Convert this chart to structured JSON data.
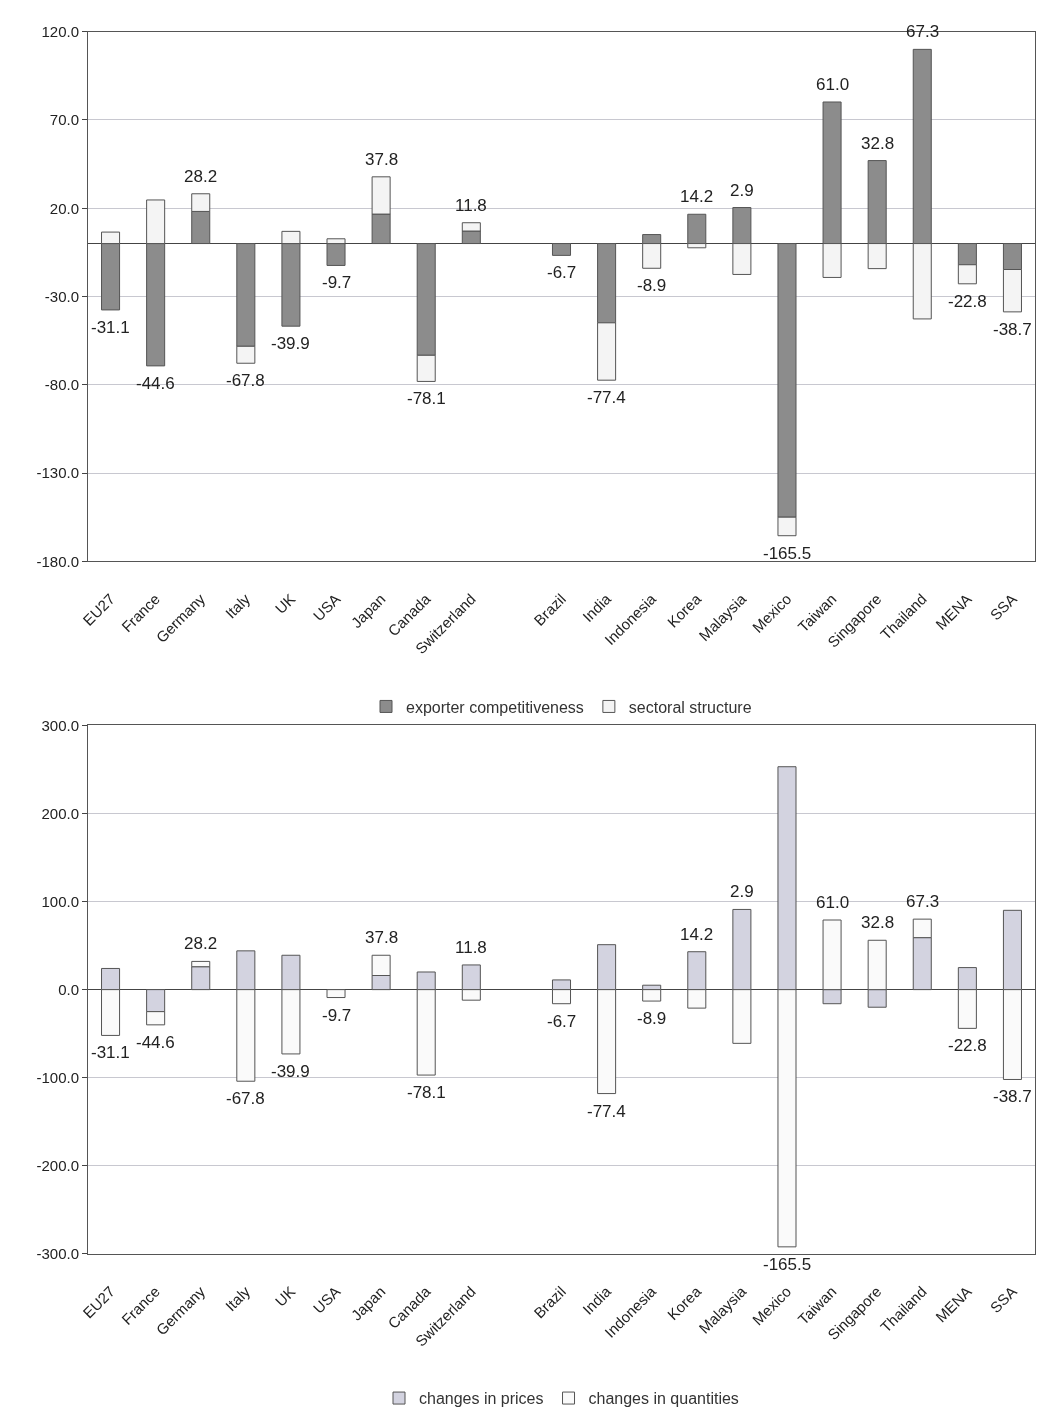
{
  "chart_data": [
    {
      "type": "bar",
      "stacked": true,
      "grid": "y",
      "legend": "bottom",
      "categories": [
        "EU27",
        "France",
        "Germany",
        "Italy",
        "UK",
        "USA",
        "Japan",
        "Canada",
        "Switzerland",
        null,
        "Brazil",
        "India",
        "Indonesia",
        "Korea",
        "Malaysia",
        "Mexico",
        "Taiwan",
        "Singapore",
        "Thailand",
        "MENA",
        "SSA"
      ],
      "series": [
        {
          "name": "exporter competitiveness",
          "color": "#8c8c8c",
          "values": [
            -37.6,
            -69.3,
            18.2,
            -58.2,
            -46.8,
            -12.4,
            16.7,
            -63.3,
            7.1,
            null,
            -6.7,
            -44.9,
            5.1,
            16.6,
            20.4,
            -155.0,
            80.2,
            47.0,
            110.0,
            -12.0,
            -14.7
          ]
        },
        {
          "name": "sectoral structure",
          "color": "#f4f4f4",
          "values": [
            6.5,
            24.7,
            10.0,
            -9.6,
            6.9,
            2.7,
            21.1,
            -14.8,
            4.7,
            null,
            null,
            -32.5,
            -14.0,
            -2.4,
            -17.5,
            -10.5,
            -19.2,
            -14.2,
            -42.7,
            -10.8,
            -24.0
          ]
        }
      ],
      "totals": [
        "-31.1",
        "-44.6",
        "28.2",
        "-67.8",
        "-39.9",
        "-9.7",
        "37.8",
        "-78.1",
        "11.8",
        null,
        "-6.7",
        "-77.4",
        "-8.9",
        "14.2",
        "2.9",
        "-165.5",
        "61.0",
        "32.8",
        "67.3",
        "-22.8",
        "-38.7"
      ],
      "ylim": [
        -180,
        120
      ],
      "yticks": [
        {
          "value": -180,
          "label": "-180.0"
        },
        {
          "value": -130,
          "label": "-130.0"
        },
        {
          "value": -80,
          "label": "-80.0"
        },
        {
          "value": -30,
          "label": "-30.0"
        },
        {
          "value": 20,
          "label": "20.0"
        },
        {
          "value": 70,
          "label": "70.0"
        },
        {
          "value": 120,
          "label": "120.0"
        }
      ]
    },
    {
      "type": "bar",
      "stacked": true,
      "grid": "y",
      "legend": "bottom",
      "categories": [
        "EU27",
        "France",
        "Germany",
        "Italy",
        "UK",
        "USA",
        "Japan",
        "Canada",
        "Switzerland",
        null,
        "Brazil",
        "India",
        "Indonesia",
        "Korea",
        "Malaysia",
        "Mexico",
        "Taiwan",
        "Singapore",
        "Thailand",
        "MENA",
        "SSA"
      ],
      "series": [
        {
          "name": "changes in prices",
          "color": "#d3d3e0",
          "values": [
            24,
            -25,
            26,
            44,
            39,
            null,
            16,
            20,
            28,
            null,
            11,
            51,
            5,
            43,
            91,
            253,
            -16,
            -20,
            59,
            25,
            90
          ]
        },
        {
          "name": "changes in quantities",
          "color": "#fafafa",
          "values": [
            -52,
            -15,
            6,
            -104,
            -73,
            -9,
            23,
            -97,
            -12,
            null,
            -16,
            -118,
            -13,
            -21,
            -61,
            -292,
            79,
            56,
            21,
            -44,
            -102
          ]
        }
      ],
      "annotations": [
        "-31.1",
        "-44.6",
        "28.2",
        "-67.8",
        "-39.9",
        "-9.7",
        "37.8",
        "-78.1",
        "11.8",
        "-6.7",
        "-77.4",
        "-8.9",
        "14.2",
        "2.9",
        "-165.5",
        "61.0",
        "32.8",
        "67.3",
        "-22.8",
        "-38.7"
      ],
      "ylim": [
        -300,
        300
      ],
      "yticks": [
        {
          "value": -300,
          "label": "-300.0"
        },
        {
          "value": -200,
          "label": "-200.0"
        },
        {
          "value": -100,
          "label": "-100.0"
        },
        {
          "value": 0,
          "label": "0.0"
        },
        {
          "value": 100,
          "label": "100.0"
        },
        {
          "value": 200,
          "label": "200.0"
        },
        {
          "value": 300,
          "label": "300.0"
        }
      ]
    }
  ]
}
